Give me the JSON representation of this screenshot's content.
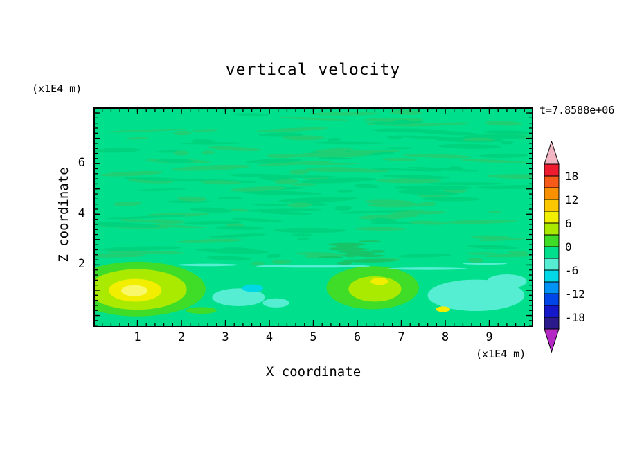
{
  "title": "vertical velocity",
  "timestamp": "t=7.8588e+06",
  "axes": {
    "x_label": "X coordinate",
    "x_unit": "(x1E4 m)",
    "y_label": "Z coordinate",
    "y_unit": "(x1E4 m)",
    "x_tick_labels": [
      "1",
      "2",
      "3",
      "4",
      "5",
      "6",
      "7",
      "8",
      "9"
    ],
    "y_tick_labels": [
      "2",
      "4",
      "6"
    ]
  },
  "chart_data": {
    "type": "heatmap",
    "title": "vertical velocity",
    "xlabel": "X coordinate (x1E4 m)",
    "ylabel": "Z coordinate (x1E4 m)",
    "time": 7858800,
    "x_range": [
      0,
      10
    ],
    "z_range": [
      -0.45,
      8.22
    ],
    "x_major_ticks": [
      1,
      2,
      3,
      4,
      5,
      6,
      7,
      8,
      9
    ],
    "z_major_ticks": [
      2,
      4,
      6
    ],
    "z_frame_major_ticks": [
      0,
      1,
      2,
      3,
      4,
      5,
      6,
      7,
      8
    ],
    "minor_tick_step": 0.2,
    "background_value_color": "#00DF8C",
    "background_value": -1,
    "colorbar": {
      "max": 21,
      "min": -21,
      "step": 3,
      "labels": [
        "18",
        "12",
        "6",
        "0",
        "-6",
        "-12",
        "-18"
      ],
      "top_arrow_color": "#F2B6C2",
      "bottom_arrow_color": "#B429C4",
      "segment_colors_top_to_bottom": [
        "#EE1C2E",
        "#F55A18",
        "#F89000",
        "#FBC800",
        "#F2EE00",
        "#A9EA00",
        "#3FDC28",
        "#00E08C",
        "#55EED2",
        "#00D8E8",
        "#0092F5",
        "#0045E8",
        "#1418C8",
        "#2A1A8C"
      ]
    },
    "features": [
      {
        "name": "updraft-blob-left-halo",
        "cx": 1.0,
        "cz": 1.05,
        "rx": 1.55,
        "rz": 1.08,
        "color": "#3FDC28",
        "approx_value": 2
      },
      {
        "name": "updraft-blob-left-mid",
        "cx": 1.0,
        "cz": 1.03,
        "rx": 1.12,
        "rz": 0.8,
        "color": "#A9EA00",
        "approx_value": 4
      },
      {
        "name": "updraft-blob-left-core",
        "cx": 0.95,
        "cz": 1.0,
        "rx": 0.6,
        "rz": 0.45,
        "color": "#F2EE00",
        "approx_value": 7
      },
      {
        "name": "updraft-blob-left-peak",
        "cx": 0.93,
        "cz": 0.98,
        "rx": 0.3,
        "rz": 0.22,
        "color": "#F8F868",
        "approx_value": 8
      },
      {
        "name": "updraft-blob-center-halo",
        "cx": 6.35,
        "cz": 1.1,
        "rx": 1.05,
        "rz": 0.85,
        "color": "#3FDC28",
        "approx_value": 2
      },
      {
        "name": "updraft-blob-center-mid",
        "cx": 6.4,
        "cz": 1.05,
        "rx": 0.6,
        "rz": 0.5,
        "color": "#A9EA00",
        "approx_value": 4
      },
      {
        "name": "updraft-blob-center-peak",
        "cx": 6.5,
        "cz": 1.35,
        "rx": 0.2,
        "rz": 0.14,
        "color": "#F2EE00",
        "approx_value": 6
      },
      {
        "name": "downdraft-patch-left",
        "cx": 3.3,
        "cz": 0.72,
        "rx": 0.6,
        "rz": 0.35,
        "color": "#55EED2",
        "approx_value": -4
      },
      {
        "name": "downdraft-spot-left",
        "cx": 3.62,
        "cz": 1.08,
        "rx": 0.24,
        "rz": 0.15,
        "color": "#00D8E8",
        "approx_value": -7
      },
      {
        "name": "downdraft-patch-left2",
        "cx": 4.15,
        "cz": 0.5,
        "rx": 0.3,
        "rz": 0.18,
        "color": "#55EED2",
        "approx_value": -4
      },
      {
        "name": "downdraft-region-right",
        "cx": 8.7,
        "cz": 0.8,
        "rx": 1.1,
        "rz": 0.62,
        "color": "#55EED2",
        "approx_value": -4
      },
      {
        "name": "downdraft-region-right2",
        "cx": 9.4,
        "cz": 1.35,
        "rx": 0.45,
        "rz": 0.28,
        "color": "#55EED2",
        "approx_value": -4
      },
      {
        "name": "updraft-dot-bottom",
        "cx": 7.95,
        "cz": 0.25,
        "rx": 0.16,
        "rz": 0.11,
        "color": "#F2EE00",
        "approx_value": 6
      },
      {
        "name": "green-patch-bottom",
        "cx": 2.45,
        "cz": 0.2,
        "rx": 0.35,
        "rz": 0.13,
        "color": "#3FDC28",
        "approx_value": 2
      },
      {
        "name": "shear-streak-1",
        "cx": 5.0,
        "cz": 1.95,
        "rx": 1.3,
        "rz": 0.06,
        "color": "#55EED2",
        "approx_value": -4
      },
      {
        "name": "shear-streak-2",
        "cx": 7.6,
        "cz": 1.85,
        "rx": 0.9,
        "rz": 0.05,
        "color": "#55EED2",
        "approx_value": -4
      },
      {
        "name": "shear-streak-3",
        "cx": 2.6,
        "cz": 2.0,
        "rx": 0.7,
        "rz": 0.05,
        "color": "#55EED2",
        "approx_value": -4
      },
      {
        "name": "shear-streak-4",
        "cx": 8.9,
        "cz": 2.05,
        "rx": 0.5,
        "rz": 0.04,
        "color": "#55EED2",
        "approx_value": -4
      }
    ],
    "texture": {
      "seed": 7,
      "count": 160,
      "x_min": 0.15,
      "x_max": 9.85,
      "z_min": 2.0,
      "z_max": 8.05,
      "rx_min": 0.15,
      "rx_max": 0.95,
      "rz_min": 0.04,
      "rz_max": 0.1,
      "max_tilt_deg": 3,
      "colors": [
        "#1FCF74",
        "#00D37E"
      ]
    },
    "texture_cluster": {
      "seed": 11,
      "cx": 5.9,
      "cz": 2.5,
      "sx": 0.8,
      "sz": 0.45,
      "count": 18,
      "rx_min": 0.15,
      "rx_max": 0.5,
      "rz_min": 0.03,
      "rz_max": 0.07,
      "color": "#17C468"
    }
  }
}
